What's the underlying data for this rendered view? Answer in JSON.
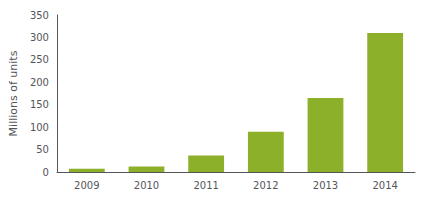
{
  "chart_data": {
    "type": "bar",
    "categories": [
      "2009",
      "2010",
      "2011",
      "2012",
      "2013",
      "2014"
    ],
    "values": [
      7,
      12,
      37,
      90,
      165,
      310
    ],
    "color": "#8db02a",
    "ylabel": "Millions of units",
    "ylim": [
      0,
      350
    ],
    "yticks": [
      0,
      50,
      100,
      150,
      200,
      250,
      300,
      350
    ],
    "grid": false
  }
}
